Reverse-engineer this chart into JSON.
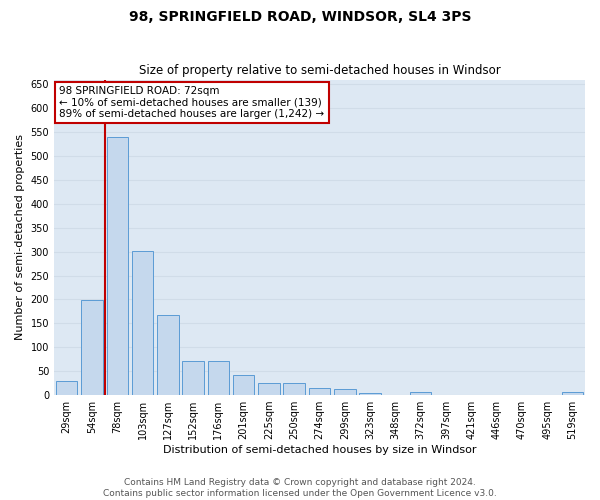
{
  "title": "98, SPRINGFIELD ROAD, WINDSOR, SL4 3PS",
  "subtitle": "Size of property relative to semi-detached houses in Windsor",
  "xlabel": "Distribution of semi-detached houses by size in Windsor",
  "ylabel": "Number of semi-detached properties",
  "categories": [
    "29sqm",
    "54sqm",
    "78sqm",
    "103sqm",
    "127sqm",
    "152sqm",
    "176sqm",
    "201sqm",
    "225sqm",
    "250sqm",
    "274sqm",
    "299sqm",
    "323sqm",
    "348sqm",
    "372sqm",
    "397sqm",
    "421sqm",
    "446sqm",
    "470sqm",
    "495sqm",
    "519sqm"
  ],
  "values": [
    30,
    198,
    540,
    302,
    168,
    72,
    72,
    42,
    26,
    26,
    14,
    12,
    4,
    0,
    6,
    0,
    0,
    0,
    0,
    0,
    6
  ],
  "bar_color": "#c5d8ed",
  "bar_edge_color": "#5b9bd5",
  "vline_index": 1.5,
  "vline_color": "#c00000",
  "annotation_lines": [
    "98 SPRINGFIELD ROAD: 72sqm",
    "← 10% of semi-detached houses are smaller (139)",
    "89% of semi-detached houses are larger (1,242) →"
  ],
  "annotation_box_color": "#c00000",
  "ylim": [
    0,
    660
  ],
  "yticks": [
    0,
    50,
    100,
    150,
    200,
    250,
    300,
    350,
    400,
    450,
    500,
    550,
    600,
    650
  ],
  "grid_color": "#d0dce8",
  "bg_color": "#dde8f3",
  "footer_line1": "Contains HM Land Registry data © Crown copyright and database right 2024.",
  "footer_line2": "Contains public sector information licensed under the Open Government Licence v3.0.",
  "title_fontsize": 10,
  "subtitle_fontsize": 8.5,
  "axis_label_fontsize": 8,
  "tick_fontsize": 7,
  "annotation_fontsize": 7.5,
  "footer_fontsize": 6.5
}
